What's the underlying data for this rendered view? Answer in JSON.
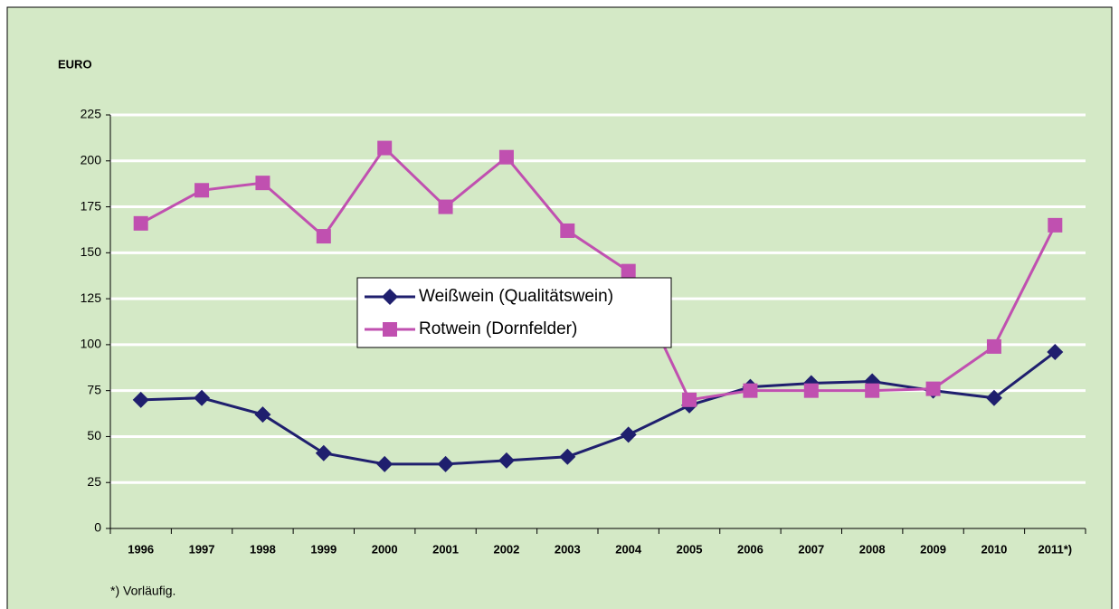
{
  "chart_data": {
    "type": "line",
    "y_label": "EURO",
    "note": "*) Vorläufig.",
    "categories": [
      "1996",
      "1997",
      "1998",
      "1999",
      "2000",
      "2001",
      "2002",
      "2003",
      "2004",
      "2005",
      "2006",
      "2007",
      "2008",
      "2009",
      "2010",
      "2011*)"
    ],
    "series": [
      {
        "name": "Weißwein (Qualitätswein)",
        "color": "#1f1f6e",
        "marker": "diamond",
        "values": [
          70,
          71,
          62,
          41,
          35,
          35,
          37,
          39,
          51,
          67,
          77,
          79,
          80,
          75,
          71,
          96
        ]
      },
      {
        "name": "Rotwein (Dornfelder)",
        "color": "#c050b0",
        "marker": "square",
        "values": [
          166,
          184,
          188,
          159,
          207,
          175,
          202,
          162,
          140,
          70,
          75,
          75,
          75,
          76,
          99,
          165
        ]
      }
    ],
    "ylim": [
      0,
      225
    ],
    "yticks": [
      0,
      25,
      50,
      75,
      100,
      125,
      150,
      175,
      200,
      225
    ],
    "grid": true,
    "legend": "center"
  }
}
